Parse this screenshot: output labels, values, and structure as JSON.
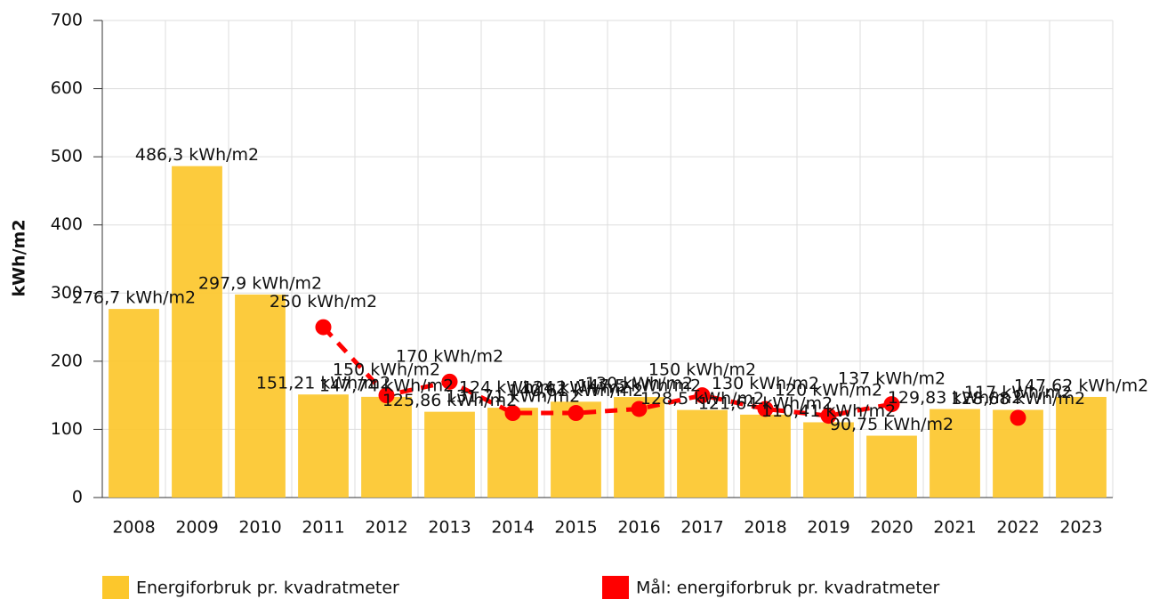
{
  "chart_data": {
    "type": "bar",
    "y_label": "kWh/m2",
    "categories": [
      "2008",
      "2009",
      "2010",
      "2011",
      "2012",
      "2013",
      "2014",
      "2015",
      "2016",
      "2017",
      "2018",
      "2019",
      "2020",
      "2021",
      "2022",
      "2023"
    ],
    "series": [
      {
        "name": "Energiforbruk pr. kvadratmeter",
        "type": "bar",
        "color": "#fcc72c",
        "values": [
          276.7,
          486.3,
          297.9,
          151.21,
          147.74,
          125.86,
          131.71,
          140.61,
          147.5,
          128.5,
          121.64,
          110.41,
          90.75,
          129.83,
          128.68,
          147.62
        ],
        "value_labels": [
          "276,7 kWh/m2",
          "486,3 kWh/m2",
          "297,9 kWh/m2",
          "151,21 kWh/m2",
          "147,74 kWh/m2",
          "125,86 kWh/m2",
          "131,71 kWh/m2",
          "140,61 kWh/m2",
          "147,5 kWh/m2",
          "128,5 kWh/m2",
          "121,64 kWh/m2",
          "110,41 kWh/m2",
          "90,75 kWh/m2",
          "129,83 kWh/m2",
          "128,68 kWh/m2",
          "147,62 kWh/m2"
        ]
      },
      {
        "name": "Mål: energiforbruk pr. kvadratmeter",
        "type": "line",
        "color": "#ff0000",
        "values": [
          null,
          null,
          null,
          250,
          150,
          170,
          124,
          124,
          130,
          150,
          130,
          120,
          137,
          null,
          117,
          null
        ],
        "value_labels": [
          null,
          null,
          null,
          "250 kWh/m2",
          "150 kWh/m2",
          "170 kWh/m2",
          "124 kWh/m2",
          "124 kWh/m2",
          "130 kWh/m2",
          "150 kWh/m2",
          "130 kWh/m2",
          "120 kWh/m2",
          "137 kWh/m2",
          null,
          "117 kWh/m2",
          null
        ]
      }
    ],
    "ylim": [
      0,
      700
    ],
    "yticks": [
      0,
      100,
      200,
      300,
      400,
      500,
      600,
      700
    ],
    "grid": true
  }
}
